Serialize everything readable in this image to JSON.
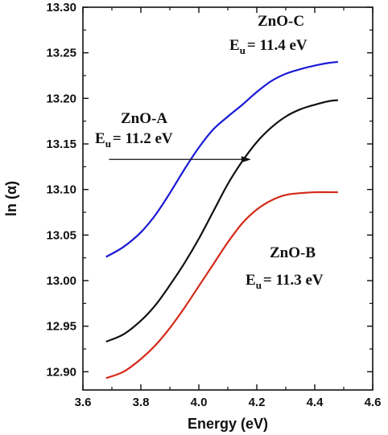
{
  "chart_data": {
    "type": "line",
    "title": "",
    "xlabel": "Energy (eV)",
    "ylabel": "ln (α)",
    "xlim": [
      3.6,
      4.6
    ],
    "ylim": [
      12.88,
      13.3
    ],
    "x_ticks": [
      "3.6",
      "3.8",
      "4.0",
      "4.2",
      "4.4",
      "4.6"
    ],
    "y_ticks": [
      "12.90",
      "12.95",
      "13.00",
      "13.05",
      "13.10",
      "13.15",
      "13.20",
      "13.25",
      "13.30"
    ],
    "x_tick_values": [
      3.6,
      3.8,
      4.0,
      4.2,
      4.4,
      4.6
    ],
    "y_tick_values": [
      12.9,
      12.95,
      13.0,
      13.05,
      13.1,
      13.15,
      13.2,
      13.25,
      13.3
    ],
    "grid": false,
    "series": [
      {
        "color": "#1a1ad4",
        "x": [
          3.68,
          3.74,
          3.8,
          3.85,
          3.9,
          3.95,
          4.0,
          4.05,
          4.1,
          4.15,
          4.2,
          4.25,
          4.3,
          4.35,
          4.4,
          4.45,
          4.48
        ],
        "y": [
          13.026,
          13.037,
          13.053,
          13.072,
          13.096,
          13.122,
          13.146,
          13.166,
          13.18,
          13.193,
          13.207,
          13.219,
          13.227,
          13.232,
          13.236,
          13.239,
          13.24
        ]
      },
      {
        "color": "#111111",
        "x": [
          3.68,
          3.74,
          3.8,
          3.85,
          3.9,
          3.95,
          4.0,
          4.05,
          4.1,
          4.15,
          4.2,
          4.25,
          4.3,
          4.35,
          4.4,
          4.45,
          4.48
        ],
        "y": [
          12.933,
          12.941,
          12.956,
          12.973,
          12.995,
          13.019,
          13.046,
          13.076,
          13.106,
          13.131,
          13.152,
          13.168,
          13.18,
          13.188,
          13.193,
          13.197,
          13.198
        ]
      },
      {
        "color": "#d42a1a",
        "x": [
          3.68,
          3.74,
          3.8,
          3.85,
          3.9,
          3.95,
          4.0,
          4.05,
          4.1,
          4.15,
          4.2,
          4.25,
          4.3,
          4.35,
          4.4,
          4.45,
          4.48
        ],
        "y": [
          12.893,
          12.9,
          12.914,
          12.929,
          12.948,
          12.97,
          12.994,
          13.018,
          13.042,
          13.063,
          13.078,
          13.088,
          13.094,
          13.096,
          13.097,
          13.097,
          13.097
        ]
      }
    ],
    "annotations": {
      "zno_c": {
        "name": "ZnO-C",
        "eu_prefix": "E",
        "eu_sub": "u",
        "eu_value": "= 11.4 eV"
      },
      "zno_a": {
        "name": "ZnO-A",
        "eu_prefix": "E",
        "eu_sub": "u",
        "eu_value": "= 11.2 eV"
      },
      "zno_b": {
        "name": "ZnO-B",
        "eu_prefix": "E",
        "eu_sub": "u",
        "eu_value": "= 11.3 eV"
      }
    },
    "arrow": {
      "x_start": 3.69,
      "x_end": 4.18,
      "y": 13.133
    }
  }
}
